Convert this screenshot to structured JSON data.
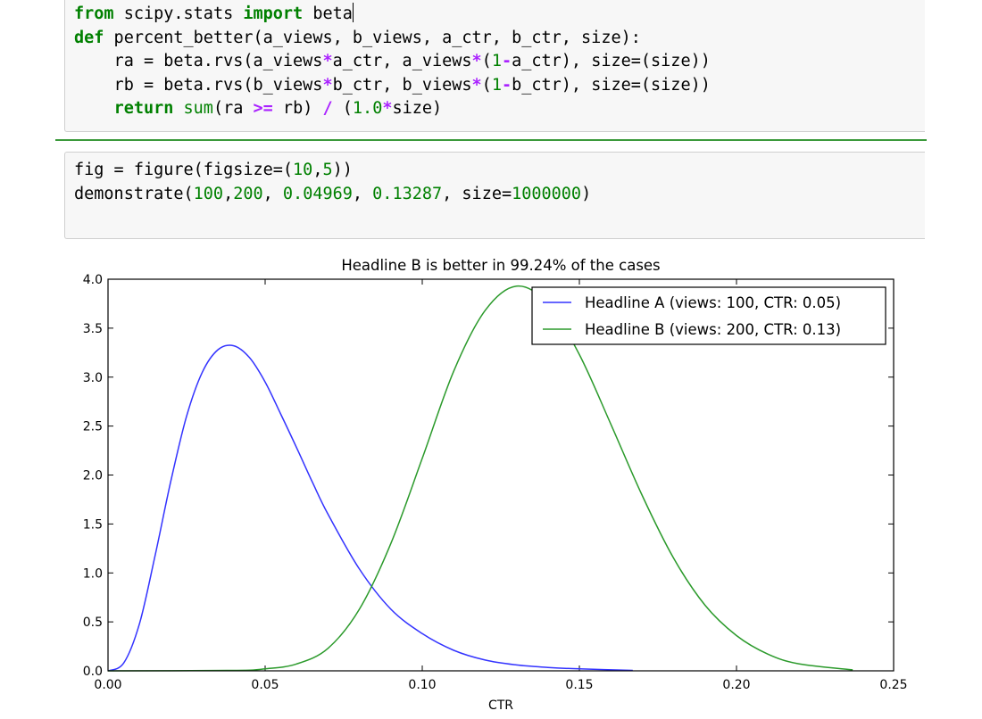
{
  "cells": [
    {
      "lines": [
        [
          [
            "kw",
            "from"
          ],
          [
            "t",
            " scipy.stats "
          ],
          [
            "kw",
            "import"
          ],
          [
            "t",
            " beta"
          ]
        ],
        [
          [
            "kw",
            "def"
          ],
          [
            "t",
            " percent_better(a_views, b_views, a_ctr, b_ctr, size):"
          ]
        ],
        [
          [
            "t",
            "    ra = beta.rvs(a_views"
          ],
          [
            "op",
            "*"
          ],
          [
            "t",
            "a_ctr, a_views"
          ],
          [
            "op",
            "*"
          ],
          [
            "t",
            "("
          ],
          [
            "num",
            "1"
          ],
          [
            "op",
            "-"
          ],
          [
            "t",
            "a_ctr), size=(size))"
          ]
        ],
        [
          [
            "t",
            "    rb = beta.rvs(b_views"
          ],
          [
            "op",
            "*"
          ],
          [
            "t",
            "b_ctr, b_views"
          ],
          [
            "op",
            "*"
          ],
          [
            "t",
            "("
          ],
          [
            "num",
            "1"
          ],
          [
            "op",
            "-"
          ],
          [
            "t",
            "b_ctr), size=(size))"
          ]
        ],
        [
          [
            "t",
            "    "
          ],
          [
            "kw",
            "return"
          ],
          [
            "t",
            " "
          ],
          [
            "bi",
            "sum"
          ],
          [
            "t",
            "(ra "
          ],
          [
            "op",
            ">="
          ],
          [
            "t",
            " rb) "
          ],
          [
            "op",
            "/"
          ],
          [
            "t",
            " ("
          ],
          [
            "num",
            "1.0"
          ],
          [
            "op",
            "*"
          ],
          [
            "t",
            "size)"
          ]
        ]
      ]
    },
    {
      "lines": [
        [
          [
            "t",
            "fig = figure(figsize=("
          ],
          [
            "num",
            "10"
          ],
          [
            "t",
            ","
          ],
          [
            "num",
            "5"
          ],
          [
            "t",
            "))"
          ]
        ],
        [
          [
            "t",
            "demonstrate("
          ],
          [
            "num",
            "100"
          ],
          [
            "t",
            ","
          ],
          [
            "num",
            "200"
          ],
          [
            "t",
            ", "
          ],
          [
            "num",
            "0.04969"
          ],
          [
            "t",
            ", "
          ],
          [
            "num",
            "0.13287"
          ],
          [
            "t",
            ", size="
          ],
          [
            "num",
            "1000000"
          ],
          [
            "t",
            ")"
          ]
        ]
      ]
    }
  ],
  "colors": {
    "series_a": "#3333ff",
    "series_b": "#2b9a2b"
  },
  "chart_data": {
    "type": "line",
    "title": "Headline B is better in 99.24% of the cases",
    "xlabel": "CTR",
    "ylabel": "",
    "xlim": [
      0.0,
      0.25
    ],
    "ylim": [
      0.0,
      4.0
    ],
    "x_ticks": [
      "0.00",
      "0.05",
      "0.10",
      "0.15",
      "0.20",
      "0.25"
    ],
    "y_ticks": [
      "0.0",
      "0.5",
      "1.0",
      "1.5",
      "2.0",
      "2.5",
      "3.0",
      "3.5",
      "4.0"
    ],
    "legend_position": "top-right",
    "series": [
      {
        "name": "Headline A (views: 100, CTR: 0.05)",
        "x": [
          0.0,
          0.005,
          0.01,
          0.015,
          0.02,
          0.025,
          0.03,
          0.035,
          0.04,
          0.045,
          0.05,
          0.055,
          0.06,
          0.065,
          0.07,
          0.08,
          0.09,
          0.1,
          0.11,
          0.12,
          0.13,
          0.14,
          0.15,
          0.167
        ],
        "y": [
          0.0,
          0.08,
          0.48,
          1.18,
          1.94,
          2.6,
          3.05,
          3.28,
          3.32,
          3.2,
          2.95,
          2.62,
          2.28,
          1.93,
          1.6,
          1.04,
          0.63,
          0.38,
          0.21,
          0.11,
          0.06,
          0.035,
          0.02,
          0.005
        ]
      },
      {
        "name": "Headline B (views: 200, CTR: 0.13)",
        "x": [
          0.0,
          0.04,
          0.05,
          0.06,
          0.07,
          0.08,
          0.09,
          0.1,
          0.11,
          0.12,
          0.13,
          0.14,
          0.15,
          0.16,
          0.17,
          0.18,
          0.19,
          0.2,
          0.21,
          0.22,
          0.237
        ],
        "y": [
          0.0,
          0.005,
          0.02,
          0.07,
          0.23,
          0.63,
          1.3,
          2.17,
          3.06,
          3.68,
          3.93,
          3.75,
          3.23,
          2.52,
          1.79,
          1.15,
          0.67,
          0.36,
          0.17,
          0.07,
          0.01
        ]
      }
    ]
  }
}
